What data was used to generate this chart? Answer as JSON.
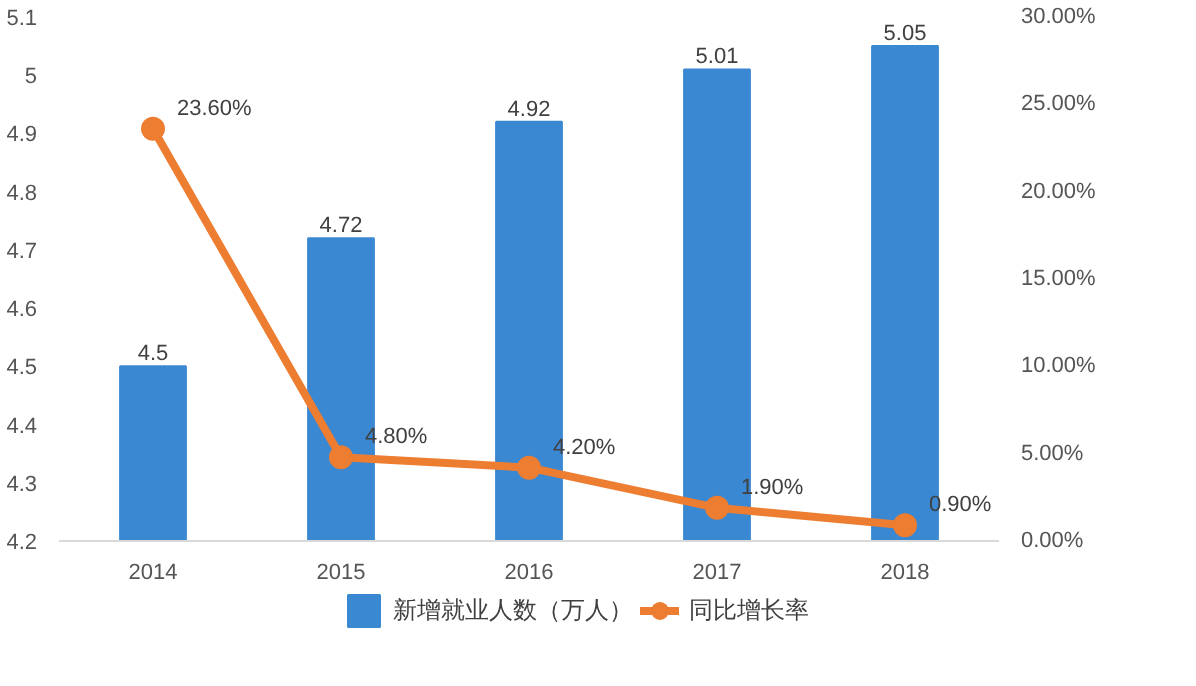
{
  "chart_data": {
    "type": "bar",
    "categories": [
      "2014",
      "2015",
      "2016",
      "2017",
      "2018"
    ],
    "series": [
      {
        "name": "新增就业人数（万人）",
        "color": "#3a87d2",
        "values": [
          4.5,
          4.72,
          4.92,
          5.01,
          5.05
        ]
      },
      {
        "name": "同比增长率",
        "type": "line",
        "axis": "y2",
        "color": "#ed7d31",
        "marker": "circle",
        "values": [
          23.6,
          4.8,
          4.2,
          1.9,
          0.9
        ],
        "value_labels": [
          "23.60%",
          "4.80%",
          "4.20%",
          "1.90%",
          "0.90%"
        ]
      }
    ],
    "data_labels": true,
    "ylim": [
      4.2,
      5.1
    ],
    "yticks": [
      4.2,
      4.3,
      4.4,
      4.5,
      4.6,
      4.7,
      4.8,
      4.9,
      5,
      5.1
    ],
    "y2lim": [
      0,
      30
    ],
    "y2ticks": [
      {
        "value": 0,
        "label": "0.00%"
      },
      {
        "value": 5,
        "label": "5.00%"
      },
      {
        "value": 10,
        "label": "10.00%"
      },
      {
        "value": 15,
        "label": "15.00%"
      },
      {
        "value": 20,
        "label": "20.00%"
      },
      {
        "value": 25,
        "label": "25.00%"
      },
      {
        "value": 30,
        "label": "30.00%"
      }
    ],
    "grid": false,
    "legend": "bottom"
  }
}
